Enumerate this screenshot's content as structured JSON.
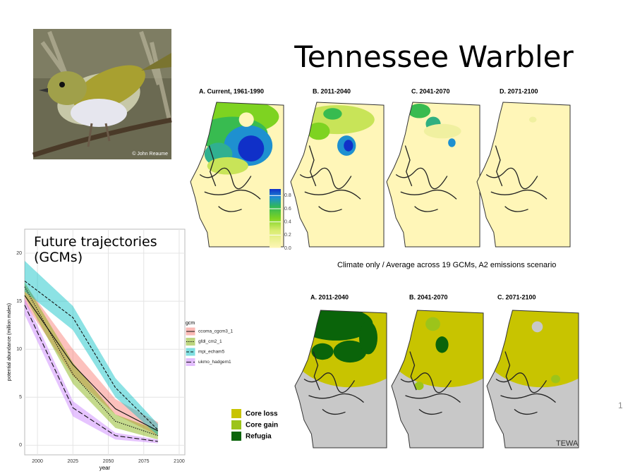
{
  "title": "Tennessee Warbler",
  "photo_credit": "© John Reaume",
  "maps_top": {
    "panels": [
      "A. Current, 1961-1990",
      "B. 2011-2040",
      "C. 2041-2070",
      "D. 2071-2100"
    ],
    "colorbar": {
      "lim": [
        0,
        0.9
      ],
      "ticks": [
        {
          "value": 0,
          "label": "0.0"
        },
        0.2,
        0.4,
        0.6,
        0.8
      ]
    },
    "caption": "Climate only / Average across 19 GCMs, A2 emissions scenario"
  },
  "maps_bottom": {
    "panels": [
      "A. 2011-2040",
      "B. 2041-2070",
      "C. 2071-2100"
    ],
    "legend": [
      {
        "label": "Core loss",
        "color": "#c8c400"
      },
      {
        "label": "Core gain",
        "color": "#9cc41a"
      },
      {
        "label": "Refugia",
        "color": "#0a640a"
      }
    ]
  },
  "credit": "TEWA",
  "page_number": 1,
  "chart_data": {
    "type": "line",
    "title": "Future trajectories (GCMs)",
    "xlabel": "year",
    "ylabel": "potential abundance (million males)",
    "legend_title": "gcm",
    "x": [
      1991,
      2025,
      2055,
      2085
    ],
    "series": [
      {
        "name": "ccoma_cgcm3_1",
        "color": "#f8766d",
        "linestyle": "solid",
        "values": [
          15.6,
          8.4,
          3.8,
          1.5
        ],
        "lower": [
          14.8,
          7.2,
          3.2,
          1.0
        ],
        "upper": [
          16.8,
          10.0,
          4.8,
          2.4
        ]
      },
      {
        "name": "gfdl_cm2_1",
        "color": "#7cae00",
        "linestyle": "dotted",
        "values": [
          16.5,
          7.4,
          2.5,
          1.0
        ],
        "lower": [
          15.5,
          6.4,
          1.8,
          0.6
        ],
        "upper": [
          17.0,
          8.6,
          3.2,
          1.6
        ]
      },
      {
        "name": "mpi_echam5",
        "color": "#00bfc4",
        "linestyle": "dashed",
        "values": [
          17.1,
          13.3,
          6.0,
          1.6
        ],
        "lower": [
          16.0,
          12.0,
          5.0,
          1.0
        ],
        "upper": [
          19.2,
          14.5,
          7.0,
          2.2
        ]
      },
      {
        "name": "ukmo_hadgem1",
        "color": "#c77cff",
        "linestyle": "longdash",
        "values": [
          14.6,
          3.9,
          1.0,
          0.4
        ],
        "lower": [
          13.6,
          3.0,
          0.6,
          0.2
        ],
        "upper": [
          15.3,
          4.6,
          1.3,
          0.6
        ]
      }
    ],
    "xlim": [
      1991,
      2104
    ],
    "xticks": [
      2000,
      2025,
      2050,
      2075,
      2100
    ],
    "ylim": [
      -1,
      22.5
    ],
    "yticks": [
      0,
      5,
      10,
      15,
      20
    ],
    "grid": true
  }
}
